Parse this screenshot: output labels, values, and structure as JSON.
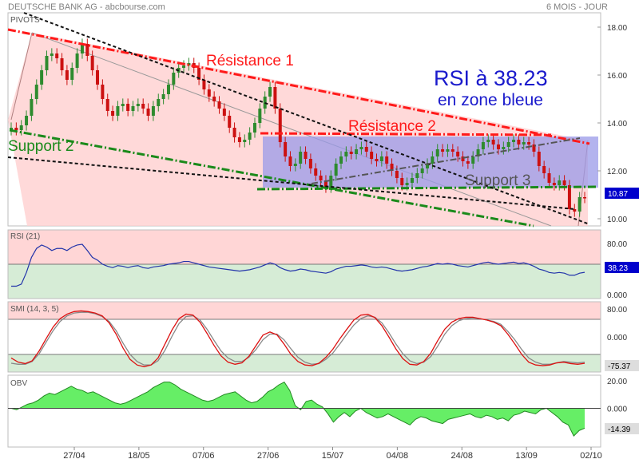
{
  "header": {
    "title": "DEUTSCHE BANK AG - abcbourse.com",
    "period": "6 MOIS - JOUR"
  },
  "theme": {
    "up_candle": "#2e8b2e",
    "down_candle": "#cc1111",
    "channel_fill": "#ffd0d0",
    "box_fill": "#9a9ae8",
    "resistance_color": "#ff1a1a",
    "support_color": "#1a8a1a",
    "trend_color": "#111111",
    "rsi_line": "#2233aa",
    "smi_fast": "#dd1111",
    "smi_slow": "#888888",
    "obv_fill": "#66ee66",
    "annotation_blue": "#1a1acc",
    "overbought_fill": "#ffd6d6",
    "oversold_fill": "#d6ecd6",
    "price_badge": "#0000cc"
  },
  "chart_data": [
    {
      "panel": "price",
      "type": "candlestick",
      "label": "PIVOTS",
      "ylim": [
        9.7,
        18.6
      ],
      "yticks": [
        10.0,
        12.0,
        14.0,
        16.0,
        18.0
      ],
      "ytick_labels": [
        "10.00",
        "12.00",
        "14.00",
        "16.00",
        "18.00"
      ],
      "last_value_label": "10.87",
      "x_labels": [
        "27/04",
        "18/05",
        "07/06",
        "27/06",
        "15/07",
        "04/08",
        "24/08",
        "13/09",
        "02/10"
      ],
      "close": [
        13.8,
        13.7,
        13.9,
        14.3,
        15.0,
        15.6,
        16.2,
        16.8,
        16.9,
        16.7,
        16.2,
        15.8,
        16.3,
        16.9,
        17.3,
        16.8,
        16.2,
        15.6,
        15.0,
        14.5,
        14.3,
        14.7,
        14.8,
        14.5,
        14.7,
        14.8,
        14.6,
        14.3,
        14.7,
        15.0,
        15.2,
        15.6,
        16.1,
        16.3,
        16.4,
        16.5,
        16.3,
        15.8,
        15.4,
        15.1,
        14.9,
        14.6,
        14.3,
        13.8,
        13.4,
        13.2,
        13.3,
        13.6,
        14.0,
        14.6,
        15.1,
        15.5,
        14.6,
        13.2,
        12.6,
        12.2,
        12.3,
        12.8,
        12.5,
        12.1,
        11.8,
        11.6,
        11.3,
        11.8,
        12.3,
        12.6,
        12.8,
        12.7,
        12.9,
        13.0,
        12.8,
        12.5,
        12.4,
        12.6,
        12.3,
        12.0,
        11.7,
        11.4,
        11.5,
        11.7,
        11.9,
        12.1,
        12.3,
        12.6,
        12.9,
        12.8,
        12.9,
        12.8,
        12.6,
        12.4,
        12.3,
        12.6,
        12.9,
        13.2,
        13.3,
        13.1,
        12.9,
        13.0,
        13.2,
        13.3,
        13.1,
        13.2,
        13.1,
        12.8,
        12.2,
        11.9,
        11.5,
        11.4,
        11.6,
        11.4,
        10.4,
        10.3,
        10.9,
        10.87
      ],
      "annotations": [
        {
          "text": "Résistance 1",
          "color": "#ff1a1a"
        },
        {
          "text": "Résistance 2",
          "color": "#ff1a1a"
        },
        {
          "text": "Support 2",
          "color": "#1a8a1a"
        },
        {
          "text": "Support 3",
          "color": "#555555"
        },
        {
          "text": "RSI à 38.23",
          "color": "#1a1acc"
        },
        {
          "text": "en zone bleue",
          "color": "#1a1acc"
        }
      ]
    },
    {
      "panel": "rsi",
      "type": "line",
      "label": "RSI (21)",
      "ylim": [
        0,
        100
      ],
      "ytick_labels": [
        "80.00",
        "0.000"
      ],
      "yticks": [
        80,
        0
      ],
      "zone_line": 50,
      "last_value_label": "38.23",
      "values": [
        18,
        18,
        21,
        38,
        60,
        73,
        78,
        75,
        70,
        73,
        73,
        70,
        75,
        78,
        79,
        70,
        60,
        56,
        50,
        47,
        45,
        48,
        47,
        45,
        47,
        48,
        45,
        44,
        46,
        47,
        48,
        50,
        51,
        52,
        54,
        54,
        52,
        50,
        48,
        46,
        45,
        44,
        43,
        42,
        41,
        40,
        41,
        42,
        44,
        46,
        49,
        52,
        50,
        45,
        42,
        40,
        41,
        43,
        42,
        40,
        39,
        38,
        37,
        39,
        43,
        45,
        47,
        47,
        48,
        49,
        48,
        46,
        45,
        46,
        45,
        43,
        41,
        40,
        41,
        42,
        44,
        46,
        47,
        49,
        51,
        50,
        51,
        50,
        48,
        47,
        46,
        48,
        50,
        52,
        53,
        51,
        50,
        51,
        52,
        53,
        51,
        52,
        50,
        47,
        43,
        41,
        38,
        37,
        38,
        37,
        34,
        34,
        37,
        38.23
      ]
    },
    {
      "panel": "smi",
      "type": "line",
      "label": "SMI (14, 3, 5)",
      "ylim": [
        -100,
        100
      ],
      "ytick_labels": [
        "80.00",
        "0.000"
      ],
      "yticks": [
        80,
        0
      ],
      "upper_band": 50,
      "lower_band": -50,
      "last_value_label": "-75.37",
      "series": [
        {
          "values": [
            -60,
            -72,
            -76,
            -68,
            -40,
            -5,
            28,
            52,
            65,
            72,
            74,
            72,
            68,
            60,
            40,
            8,
            -32,
            -64,
            -80,
            -85,
            -80,
            -60,
            -20,
            20,
            52,
            65,
            62,
            42,
            10,
            -24,
            -54,
            -72,
            -78,
            -74,
            -55,
            -25,
            5,
            14,
            6,
            -20,
            -50,
            -70,
            -80,
            -82,
            -75,
            -58,
            -35,
            -5,
            22,
            48,
            62,
            64,
            55,
            32,
            0,
            -34,
            -62,
            -78,
            -80,
            -70,
            -46,
            -10,
            22,
            42,
            52,
            56,
            56,
            52,
            48,
            42,
            32,
            8,
            -20,
            -50,
            -72,
            -80,
            -82,
            -80,
            -74,
            -72,
            -76,
            -78,
            -75.37
          ]
        },
        {
          "values": [
            -75,
            -78,
            -78,
            -70,
            -48,
            -15,
            18,
            44,
            60,
            68,
            70,
            70,
            66,
            58,
            44,
            18,
            -18,
            -50,
            -70,
            -80,
            -80,
            -68,
            -38,
            2,
            38,
            58,
            60,
            48,
            22,
            -10,
            -40,
            -60,
            -70,
            -70,
            -58,
            -36,
            -8,
            8,
            8,
            -8,
            -34,
            -58,
            -72,
            -78,
            -76,
            -64,
            -46,
            -20,
            8,
            34,
            52,
            60,
            56,
            40,
            12,
            -20,
            -48,
            -68,
            -76,
            -72,
            -56,
            -26,
            8,
            32,
            46,
            52,
            54,
            52,
            48,
            44,
            36,
            16,
            -8,
            -36,
            -60,
            -72,
            -78,
            -78,
            -74,
            -70,
            -72,
            -74,
            -72
          ]
        }
      ]
    },
    {
      "panel": "obv",
      "type": "area",
      "label": "OBV",
      "ylim": [
        -28,
        24
      ],
      "ytick_labels": [
        "20.00",
        "0.000"
      ],
      "yticks": [
        20,
        0
      ],
      "last_value_label": "-14.39",
      "values": [
        0,
        -1,
        1,
        3,
        4,
        6,
        9,
        11,
        10,
        12,
        14,
        16,
        14,
        13,
        11,
        12,
        10,
        8,
        6,
        4,
        3,
        4,
        6,
        8,
        10,
        12,
        15,
        17,
        19,
        19,
        17,
        14,
        12,
        10,
        8,
        6,
        5,
        6,
        8,
        10,
        11,
        12,
        9,
        6,
        4,
        5,
        8,
        12,
        14,
        17,
        19,
        13,
        2,
        -1,
        5,
        6,
        3,
        1,
        -4,
        -10,
        -6,
        -3,
        -6,
        -2,
        0,
        -3,
        -5,
        -7,
        -6,
        -4,
        -6,
        -8,
        -10,
        -12,
        -8,
        -6,
        -7,
        -9,
        -10,
        -11,
        -8,
        -7,
        -6,
        -5,
        -4,
        -6,
        -7,
        -5,
        -6,
        -8,
        -7,
        -9,
        -5,
        -4,
        -2,
        -3,
        -4,
        -1,
        0,
        -3,
        -6,
        -10,
        -12,
        -20,
        -16,
        -14.39
      ]
    }
  ]
}
